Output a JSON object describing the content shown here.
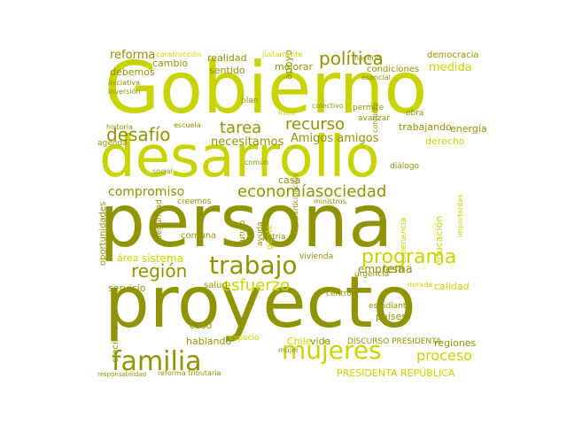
{
  "palette": {
    "lime": "#c8d400",
    "olive": "#8f9400",
    "dark_olive": "#6f7300",
    "light_lime": "#d8dc55",
    "pale": "#e2e48a"
  },
  "words": [
    {
      "text": "Gobierno",
      "color": "lime"
    },
    {
      "text": "desarrollo",
      "color": "lime"
    },
    {
      "text": "persona",
      "color": "olive"
    },
    {
      "text": "proyecto",
      "color": "olive"
    },
    {
      "text": "familia",
      "color": "olive"
    },
    {
      "text": "mujeres",
      "color": "lime"
    },
    {
      "text": "trabajo",
      "color": "olive"
    },
    {
      "text": "programa",
      "color": "lime"
    },
    {
      "text": "política",
      "color": "olive"
    },
    {
      "text": "recurso",
      "color": "olive"
    },
    {
      "text": "tarea",
      "color": "olive"
    },
    {
      "text": "desafío",
      "color": "olive"
    },
    {
      "text": "economía",
      "color": "olive"
    },
    {
      "text": "sociedad",
      "color": "olive"
    },
    {
      "text": "región",
      "color": "olive"
    },
    {
      "text": "esfuerzo",
      "color": "lime"
    },
    {
      "text": "proceso",
      "color": "lime"
    },
    {
      "text": "compromiso",
      "color": "olive"
    },
    {
      "text": "Amigos amigos",
      "color": "olive"
    },
    {
      "text": "necesitamos",
      "color": "olive"
    },
    {
      "text": "reforma",
      "color": "olive"
    },
    {
      "text": "realidad",
      "color": "olive"
    },
    {
      "text": "cambio",
      "color": "olive"
    },
    {
      "text": "sentido",
      "color": "olive"
    },
    {
      "text": "debemos",
      "color": "olive"
    },
    {
      "text": "democracia",
      "color": "olive"
    },
    {
      "text": "medida",
      "color": "lime"
    },
    {
      "text": "derecho",
      "color": "lime"
    },
    {
      "text": "energía",
      "color": "olive"
    },
    {
      "text": "trabajando",
      "color": "olive"
    },
    {
      "text": "tema",
      "color": "olive"
    },
    {
      "text": "sistema",
      "color": "lime"
    },
    {
      "text": "área",
      "color": "lime"
    },
    {
      "text": "servicio",
      "color": "olive"
    },
    {
      "text": "calidad",
      "color": "lime"
    },
    {
      "text": "empresa",
      "color": "olive"
    },
    {
      "text": "educación",
      "color": "lime"
    },
    {
      "text": "mejorar",
      "color": "olive"
    },
    {
      "text": "apoyo",
      "color": "olive"
    },
    {
      "text": "vida",
      "color": "olive"
    },
    {
      "text": "salud",
      "color": "olive"
    },
    {
      "text": "casa",
      "color": "olive"
    },
    {
      "text": "comuna",
      "color": "olive"
    },
    {
      "text": "gente",
      "color": "lime"
    },
    {
      "text": "caso",
      "color": "olive"
    },
    {
      "text": "hablando",
      "color": "olive"
    },
    {
      "text": "regiones",
      "color": "olive"
    },
    {
      "text": "países",
      "color": "olive"
    },
    {
      "text": "crecimiento",
      "color": "olive"
    },
    {
      "text": "oportunidades",
      "color": "olive"
    },
    {
      "text": "seguridad",
      "color": "olive"
    },
    {
      "text": "PRESIDENTA REPÚBLICA",
      "color": "lime"
    },
    {
      "text": "DISCURSO PRESIDENTA",
      "color": "olive"
    },
    {
      "text": "reforma tributaria",
      "color": "olive"
    },
    {
      "text": "agenda",
      "color": "olive"
    },
    {
      "text": "historia",
      "color": "olive"
    },
    {
      "text": "social",
      "color": "olive"
    },
    {
      "text": "plan",
      "color": "olive"
    },
    {
      "text": "idea",
      "color": "lime"
    },
    {
      "text": "permite",
      "color": "olive"
    },
    {
      "text": "obra",
      "color": "olive"
    },
    {
      "text": "vivienda",
      "color": "olive"
    },
    {
      "text": "centro",
      "color": "olive"
    },
    {
      "text": "estudiante",
      "color": "olive"
    },
    {
      "text": "Chile",
      "color": "lime"
    },
    {
      "text": "espacio",
      "color": "lime"
    },
    {
      "text": "urgencia",
      "color": "olive"
    },
    {
      "text": "participación",
      "color": "olive"
    },
    {
      "text": "patria",
      "color": "olive"
    },
    {
      "text": "futuro",
      "color": "olive"
    },
    {
      "text": "mirada",
      "color": "lime"
    },
    {
      "text": "ayuda",
      "color": "olive"
    },
    {
      "text": "iniciativa",
      "color": "olive"
    },
    {
      "text": "inversión",
      "color": "olive"
    },
    {
      "text": "construcción",
      "color": "lime"
    },
    {
      "text": "justamente",
      "color": "lime"
    },
    {
      "text": "condiciones",
      "color": "olive"
    },
    {
      "text": "escuela",
      "color": "olive"
    },
    {
      "text": "avanzar",
      "color": "olive"
    },
    {
      "text": "experiencia",
      "color": "lime"
    },
    {
      "text": "creemos",
      "color": "olive"
    },
    {
      "text": "diálogo",
      "color": "olive"
    },
    {
      "text": "mujer",
      "color": "olive"
    },
    {
      "text": "hacerlo",
      "color": "olive"
    },
    {
      "text": "esencial",
      "color": "olive"
    },
    {
      "text": "colectivo",
      "color": "olive"
    },
    {
      "text": "conjunto",
      "color": "olive"
    },
    {
      "text": "ministros",
      "color": "olive"
    },
    {
      "text": "común",
      "color": "olive"
    },
    {
      "text": "importantes",
      "color": "lime"
    },
    {
      "text": "responsabilidad",
      "color": "olive"
    }
  ]
}
